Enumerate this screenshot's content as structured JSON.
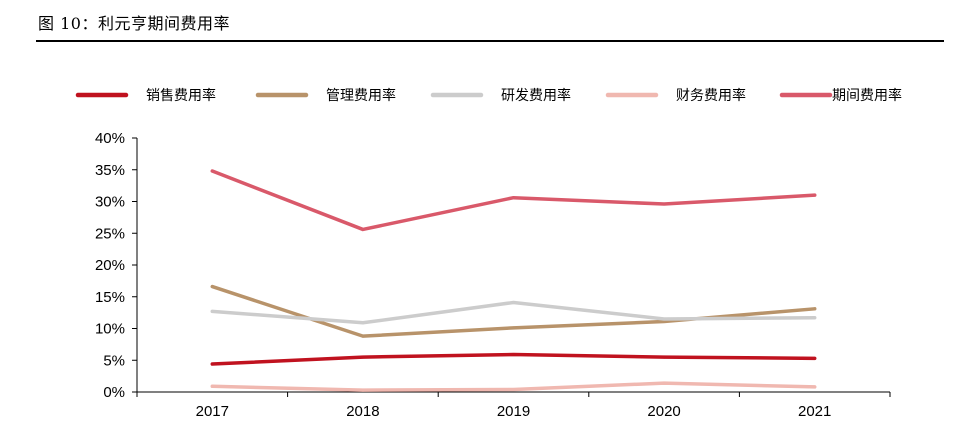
{
  "figure": {
    "title": "图 10：利元亨期间费用率"
  },
  "colors": {
    "销售费用率": "#c0121f",
    "管理费用率": "#b8936a",
    "研发费用率": "#cccccc",
    "财务费用率": "#f0b8b0",
    "期间费用率": "#d9596a"
  },
  "chart_data": {
    "type": "line",
    "title": "",
    "xlabel": "",
    "ylabel": "",
    "categories": [
      "2017",
      "2018",
      "2019",
      "2020",
      "2021"
    ],
    "ylim": [
      0,
      40
    ],
    "y_ticks": [
      "0%",
      "5%",
      "10%",
      "15%",
      "20%",
      "25%",
      "30%",
      "35%",
      "40%"
    ],
    "legend_position": "top",
    "grid": false,
    "series": [
      {
        "name": "销售费用率",
        "values": [
          4.4,
          5.5,
          5.9,
          5.5,
          5.3
        ]
      },
      {
        "name": "管理费用率",
        "values": [
          16.6,
          8.8,
          10.1,
          11.1,
          13.1
        ]
      },
      {
        "name": "研发费用率",
        "values": [
          12.7,
          10.9,
          14.1,
          11.5,
          11.7
        ]
      },
      {
        "name": "财务费用率",
        "values": [
          0.9,
          0.3,
          0.4,
          1.4,
          0.8
        ]
      },
      {
        "name": "期间费用率",
        "values": [
          34.8,
          25.6,
          30.6,
          29.6,
          31.0
        ]
      }
    ]
  }
}
